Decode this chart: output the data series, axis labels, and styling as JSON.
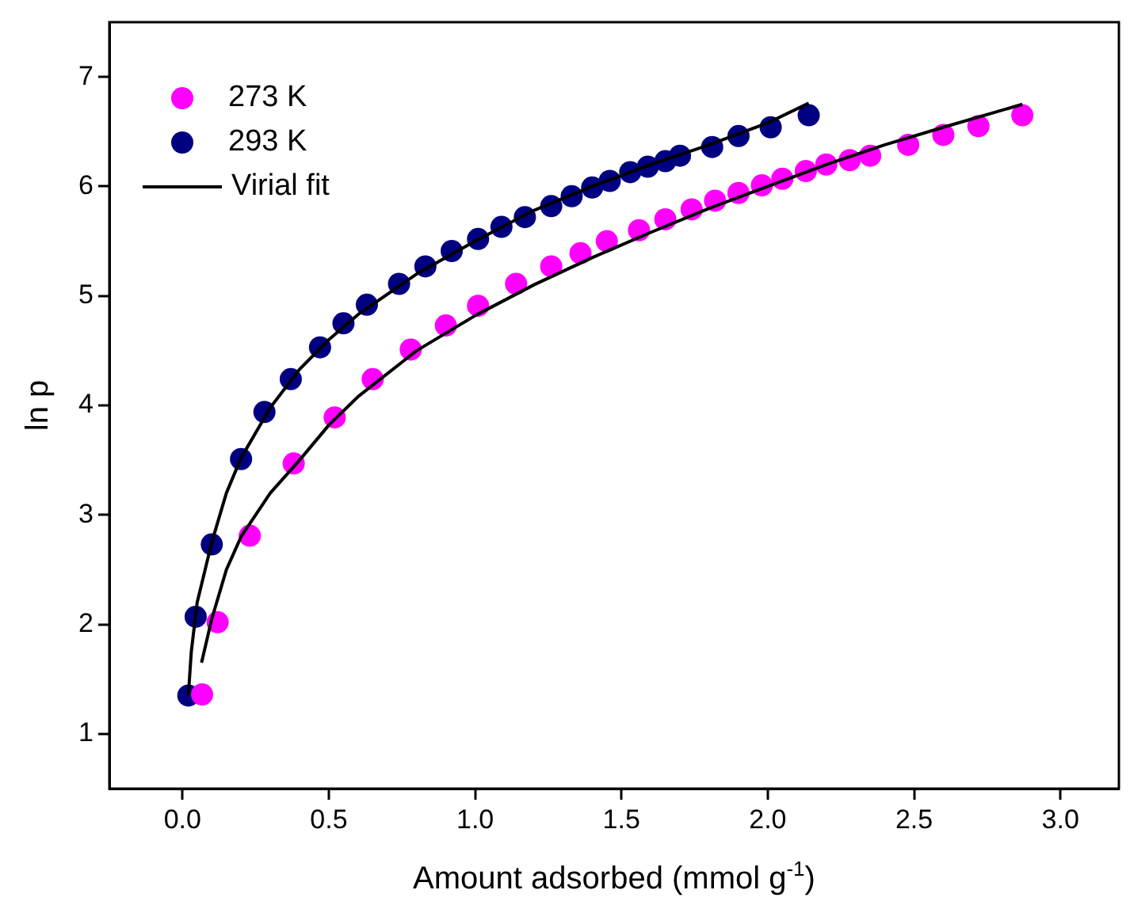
{
  "chart_data": {
    "type": "scatter",
    "xlabel": "Amount adsorbed (mmol g$^{-1}$)",
    "ylabel": "ln p",
    "xlim": [
      -0.25,
      3.2
    ],
    "xticks": [
      {
        "value": 0,
        "label": "0.0"
      },
      0.5,
      {
        "value": 1,
        "label": "1.0"
      },
      1.5,
      {
        "value": 2,
        "label": "2.0"
      },
      2.5,
      {
        "value": 3,
        "label": "3.0"
      }
    ],
    "ylim": [
      0.5,
      7.5
    ],
    "yticks": [
      1,
      2,
      3,
      4,
      5,
      6,
      7
    ],
    "grid": false,
    "legend": "top left",
    "marker": "circle",
    "series": [
      {
        "name": "273 K",
        "color": "#ff00ff",
        "x": [
          0.067,
          0.12,
          0.23,
          0.38,
          0.52,
          0.65,
          0.78,
          0.9,
          1.01,
          1.14,
          1.26,
          1.36,
          1.45,
          1.56,
          1.65,
          1.74,
          1.82,
          1.9,
          1.98,
          2.05,
          2.13,
          2.2,
          2.28,
          2.35,
          2.48,
          2.6,
          2.72,
          2.87
        ],
        "values": [
          1.36,
          2.02,
          2.81,
          3.47,
          3.89,
          4.24,
          4.51,
          4.73,
          4.91,
          5.11,
          5.27,
          5.39,
          5.5,
          5.6,
          5.7,
          5.79,
          5.87,
          5.94,
          6.01,
          6.07,
          6.14,
          6.2,
          6.24,
          6.28,
          6.38,
          6.47,
          6.55,
          6.65
        ]
      },
      {
        "name": "293 K",
        "color": "#000080",
        "x": [
          0.02,
          0.045,
          0.1,
          0.2,
          0.28,
          0.37,
          0.47,
          0.55,
          0.63,
          0.74,
          0.83,
          0.92,
          1.01,
          1.09,
          1.17,
          1.26,
          1.33,
          1.4,
          1.46,
          1.53,
          1.59,
          1.65,
          1.7,
          1.81,
          1.9,
          2.01,
          2.14
        ],
        "values": [
          1.35,
          2.07,
          2.73,
          3.51,
          3.94,
          4.24,
          4.53,
          4.75,
          4.92,
          5.11,
          5.27,
          5.41,
          5.52,
          5.63,
          5.72,
          5.82,
          5.91,
          5.99,
          6.05,
          6.13,
          6.18,
          6.23,
          6.28,
          6.36,
          6.46,
          6.54,
          6.65
        ]
      },
      {
        "name": "Virial fit",
        "type": "line",
        "marker": "none",
        "color": "#000000",
        "x": [
          0.02,
          0.03,
          0.05,
          0.1,
          0.15,
          0.2,
          0.3,
          0.4,
          0.5,
          0.6,
          0.8,
          1.0,
          1.2,
          1.4,
          1.6,
          1.8,
          2.0,
          2.14
        ],
        "values": [
          1.35,
          1.75,
          2.2,
          2.75,
          3.2,
          3.52,
          3.98,
          4.33,
          4.6,
          4.83,
          5.2,
          5.5,
          5.78,
          6.0,
          6.2,
          6.38,
          6.58,
          6.76
        ]
      },
      {
        "type": "line",
        "marker": "none",
        "color": "#000000",
        "x": [
          0.065,
          0.1,
          0.15,
          0.2,
          0.3,
          0.4,
          0.5,
          0.6,
          0.8,
          1.0,
          1.2,
          1.4,
          1.6,
          1.8,
          2.0,
          2.2,
          2.4,
          2.6,
          2.87
        ],
        "values": [
          1.65,
          2.05,
          2.5,
          2.8,
          3.2,
          3.5,
          3.82,
          4.08,
          4.5,
          4.82,
          5.1,
          5.35,
          5.58,
          5.8,
          6.0,
          6.2,
          6.38,
          6.54,
          6.75
        ]
      }
    ]
  }
}
